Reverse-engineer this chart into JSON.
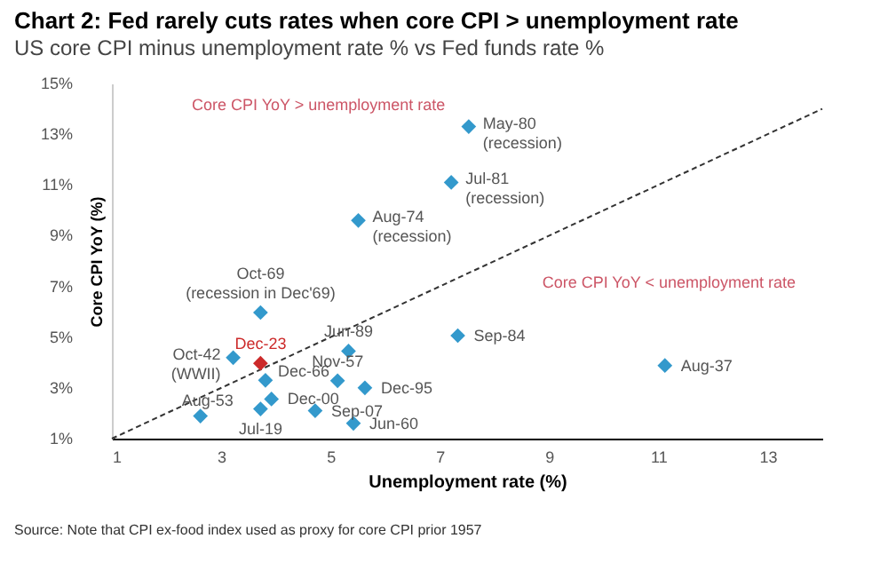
{
  "chart_data": {
    "type": "scatter",
    "title": "Chart 2: Fed rarely cuts rates when core CPI > unemployment rate",
    "subtitle": "US core CPI minus unemployment rate % vs Fed funds rate %",
    "xlabel": "Unemployment rate (%)",
    "ylabel": "Core CPI YoY (%)",
    "xlim": [
      1,
      14
    ],
    "xticks": [
      1,
      3,
      5,
      7,
      9,
      11,
      13
    ],
    "ylim": [
      1,
      15
    ],
    "yticks": [
      {
        "value": 1,
        "label": "1%"
      },
      {
        "value": 3,
        "label": "3%"
      },
      {
        "value": 5,
        "label": "5%"
      },
      {
        "value": 7,
        "label": "7%"
      },
      {
        "value": 9,
        "label": "9%"
      },
      {
        "value": 11,
        "label": "11%"
      },
      {
        "value": 13,
        "label": "13%"
      },
      {
        "value": 15,
        "label": "15%"
      }
    ],
    "grid": false,
    "marker": "diamond",
    "series": [
      {
        "type": "line",
        "color": "#333333",
        "line_style": "dashed",
        "marker": "none",
        "x": [
          1,
          14
        ],
        "values": [
          1,
          14
        ]
      },
      {
        "color": "#3399cc",
        "x": [
          7.53,
          7.21,
          5.51,
          3.72,
          7.33,
          5.33,
          3.22,
          11.12,
          3.81,
          5.13,
          5.63,
          3.92,
          3.72,
          2.62,
          4.72,
          5.42
        ],
        "values": [
          13.3,
          11.1,
          9.6,
          5.97,
          5.06,
          4.45,
          4.19,
          3.88,
          3.3,
          3.28,
          3.0,
          2.56,
          2.17,
          1.89,
          2.1,
          1.6
        ]
      },
      {
        "color": "#cc2a2a",
        "x": [
          3.72
        ],
        "values": [
          3.97
        ]
      }
    ],
    "annotations": [
      {
        "text": "May-80\n(recession)",
        "x": 7.53,
        "y": 13.3
      },
      {
        "text": "Jul-81\n(recession)",
        "x": 7.21,
        "y": 11.1
      },
      {
        "text": "Aug-74\n(recession)",
        "x": 5.51,
        "y": 9.6
      },
      {
        "text": "Oct-69\n(recession in Dec'69)",
        "x": 3.72,
        "y": 5.97
      },
      {
        "text": "Sep-84",
        "x": 7.33,
        "y": 5.06
      },
      {
        "text": "Jun-89",
        "x": 5.33,
        "y": 4.45
      },
      {
        "text": "Oct-42\n(WWII)",
        "x": 3.22,
        "y": 4.19
      },
      {
        "text": "Dec-23",
        "x": 3.72,
        "y": 3.97
      },
      {
        "text": "Aug-37",
        "x": 11.12,
        "y": 3.88
      },
      {
        "text": "Dec-66",
        "x": 3.81,
        "y": 3.3
      },
      {
        "text": "Nov-57",
        "x": 5.13,
        "y": 3.28
      },
      {
        "text": "Dec-95",
        "x": 5.63,
        "y": 3.0
      },
      {
        "text": "Dec-00",
        "x": 3.92,
        "y": 2.56
      },
      {
        "text": "Jul-19",
        "x": 3.72,
        "y": 2.17
      },
      {
        "text": "Aug-53",
        "x": 2.62,
        "y": 1.89
      },
      {
        "text": "Sep-07",
        "x": 4.72,
        "y": 2.1
      },
      {
        "text": "Jun-60",
        "x": 5.42,
        "y": 1.6
      },
      "Core CPI YoY > unemployment rate",
      "Core CPI YoY < unemployment rate",
      "Source: Note that CPI ex-food index used as proxy for core CPI prior 1957"
    ]
  }
}
